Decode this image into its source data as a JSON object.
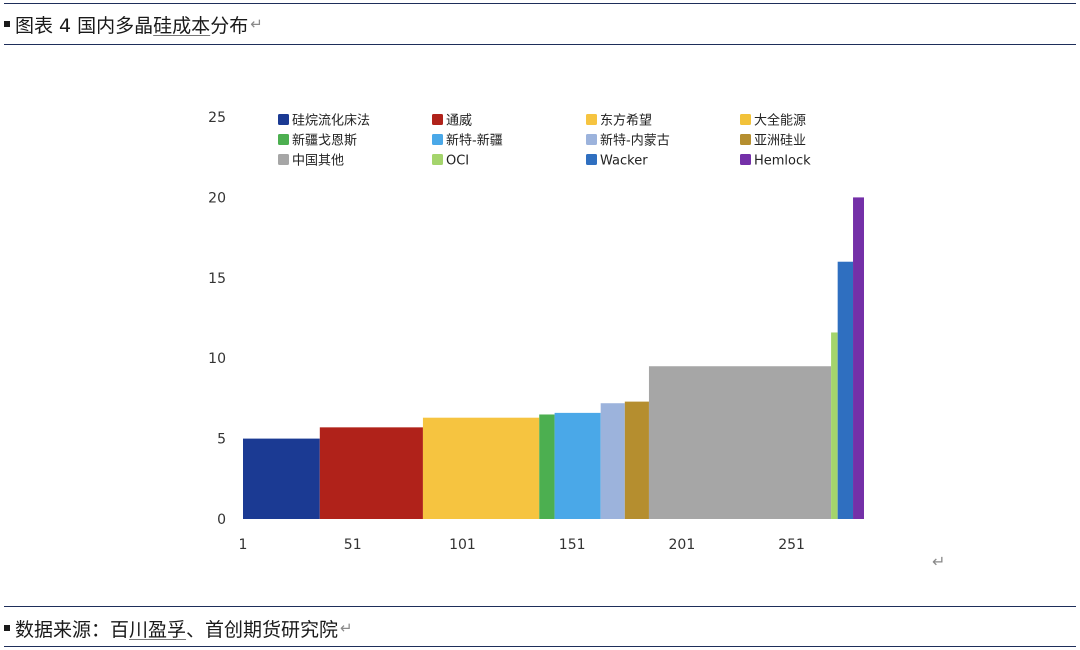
{
  "header": {
    "title_prefix": "图表 4 国内多晶",
    "title_underlined": "硅成本",
    "title_suffix": "分布",
    "return_mark": "↵"
  },
  "footer": {
    "source_prefix": "数据来源：百",
    "source_underlined": "川盈孚",
    "source_suffix": "、首创期货研究院",
    "return_mark": "↵"
  },
  "chart_return_mark": "↵",
  "chart_data": {
    "type": "bar",
    "variant": "variable-width cost curve",
    "title": "",
    "xlabel": "",
    "ylabel": "",
    "xlim": [
      1,
      279
    ],
    "ylim": [
      0,
      25
    ],
    "x_ticks": [
      1,
      51,
      101,
      151,
      201,
      251
    ],
    "y_ticks": [
      0,
      5,
      10,
      15,
      20,
      25
    ],
    "grid": false,
    "legend_position": "top",
    "series": [
      {
        "name": "硅烷流化床法",
        "x_start": 1,
        "x_end": 36,
        "value": 5.0,
        "color": "#1b3a93"
      },
      {
        "name": "通威",
        "x_start": 36,
        "x_end": 83,
        "value": 5.7,
        "color": "#b0221a"
      },
      {
        "name": "东方希望",
        "x_start": 83,
        "x_end": 136,
        "value": 6.3,
        "color": "#f6c440"
      },
      {
        "name": "大全能源",
        "x_start": 136,
        "x_end": 136,
        "value": 6.3,
        "color": "#f2c23a"
      },
      {
        "name": "新疆戈恩斯",
        "x_start": 136,
        "x_end": 143,
        "value": 6.5,
        "color": "#4caf50"
      },
      {
        "name": "新特-新疆",
        "x_start": 143,
        "x_end": 164,
        "value": 6.6,
        "color": "#4aa8e8"
      },
      {
        "name": "新特-内蒙古",
        "x_start": 164,
        "x_end": 175,
        "value": 7.2,
        "color": "#9cb3dc"
      },
      {
        "name": "亚洲硅业",
        "x_start": 175,
        "x_end": 186,
        "value": 7.3,
        "color": "#b58e2f"
      },
      {
        "name": "中国其他",
        "x_start": 186,
        "x_end": 269,
        "value": 9.5,
        "color": "#a6a6a6"
      },
      {
        "name": "OCI",
        "x_start": 269,
        "x_end": 272,
        "value": 11.6,
        "color": "#a4d46c"
      },
      {
        "name": "Wacker",
        "x_start": 272,
        "x_end": 279,
        "value": 16.0,
        "color": "#2f6fc0"
      },
      {
        "name": "Hemlock",
        "x_start": 279,
        "x_end": 284,
        "value": 20.0,
        "color": "#7430a8"
      }
    ]
  }
}
